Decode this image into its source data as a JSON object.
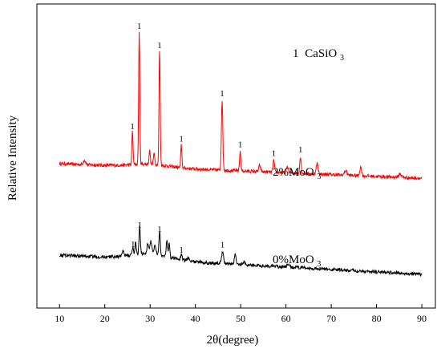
{
  "chart_data": {
    "type": "line",
    "xlabel": "2θ(degree)",
    "ylabel": "Relative Intensity",
    "xlim": [
      5,
      93
    ],
    "ylim": [
      0,
      100
    ],
    "x_ticks": [
      10,
      20,
      30,
      40,
      50,
      60,
      70,
      80,
      90
    ],
    "y_ticks_shown": false,
    "grid": false,
    "legend_annotation": {
      "marker": "1",
      "name": "CaSiO",
      "subscript": "3"
    },
    "series": [
      {
        "name": "2%MoO3",
        "label_main": "2%MoO",
        "label_sub": "3",
        "color": "#ff0000",
        "baseline": 47.5,
        "slope": -0.06,
        "peaks": [
          {
            "x": 15.5,
            "h": 1.5,
            "w": 0.35
          },
          {
            "x": 26.1,
            "h": 11.0,
            "w": 0.18
          },
          {
            "x": 27.6,
            "h": 44.0,
            "w": 0.18
          },
          {
            "x": 29.9,
            "h": 4.5,
            "w": 0.2
          },
          {
            "x": 30.9,
            "h": 4.0,
            "w": 0.2
          },
          {
            "x": 32.1,
            "h": 38.0,
            "w": 0.18
          },
          {
            "x": 36.9,
            "h": 7.5,
            "w": 0.18
          },
          {
            "x": 45.9,
            "h": 23.0,
            "w": 0.22
          },
          {
            "x": 49.9,
            "h": 6.5,
            "w": 0.2
          },
          {
            "x": 54.2,
            "h": 2.0,
            "w": 0.3
          },
          {
            "x": 57.3,
            "h": 4.0,
            "w": 0.22
          },
          {
            "x": 60.3,
            "h": 2.0,
            "w": 0.3
          },
          {
            "x": 63.2,
            "h": 5.5,
            "w": 0.22
          },
          {
            "x": 66.9,
            "h": 3.5,
            "w": 0.3
          },
          {
            "x": 73.2,
            "h": 1.5,
            "w": 0.4
          },
          {
            "x": 76.5,
            "h": 2.8,
            "w": 0.3
          },
          {
            "x": 85.2,
            "h": 1.2,
            "w": 0.4
          }
        ],
        "peak_markers": [
          {
            "x": 26.1,
            "text": "1"
          },
          {
            "x": 27.6,
            "text": "1"
          },
          {
            "x": 32.1,
            "text": "1"
          },
          {
            "x": 36.9,
            "text": "1"
          },
          {
            "x": 45.9,
            "text": "1"
          },
          {
            "x": 49.9,
            "text": "1"
          },
          {
            "x": 57.3,
            "text": "1"
          },
          {
            "x": 63.2,
            "text": "1"
          }
        ]
      },
      {
        "name": "0%MoO3",
        "label_main": "0%MoO",
        "label_sub": "3",
        "color": "#000000",
        "baseline": 17.5,
        "slope": -0.08,
        "peaks": [
          {
            "x": 24.0,
            "h": 1.5,
            "w": 0.3
          },
          {
            "x": 26.2,
            "h": 2.5,
            "w": 0.2
          },
          {
            "x": 26.8,
            "h": 4.0,
            "w": 0.2
          },
          {
            "x": 27.7,
            "h": 9.0,
            "w": 0.2
          },
          {
            "x": 29.5,
            "h": 3.0,
            "w": 0.3
          },
          {
            "x": 30.2,
            "h": 4.0,
            "w": 0.3
          },
          {
            "x": 31.1,
            "h": 3.0,
            "w": 0.3
          },
          {
            "x": 32.1,
            "h": 8.0,
            "w": 0.2
          },
          {
            "x": 33.7,
            "h": 5.5,
            "w": 0.2
          },
          {
            "x": 34.2,
            "h": 4.5,
            "w": 0.2
          },
          {
            "x": 36.9,
            "h": 1.5,
            "w": 0.25
          },
          {
            "x": 38.5,
            "h": 1.2,
            "w": 0.3
          },
          {
            "x": 46.0,
            "h": 4.0,
            "w": 0.3
          },
          {
            "x": 48.8,
            "h": 3.5,
            "w": 0.25
          },
          {
            "x": 50.7,
            "h": 1.0,
            "w": 0.3
          },
          {
            "x": 60.5,
            "h": 0.8,
            "w": 0.4
          }
        ],
        "peak_markers": [
          {
            "x": 26.2,
            "text": "1"
          },
          {
            "x": 27.7,
            "text": "1"
          },
          {
            "x": 32.1,
            "text": "1"
          },
          {
            "x": 36.9,
            "text": "1"
          },
          {
            "x": 46.0,
            "text": "1"
          }
        ]
      }
    ]
  }
}
